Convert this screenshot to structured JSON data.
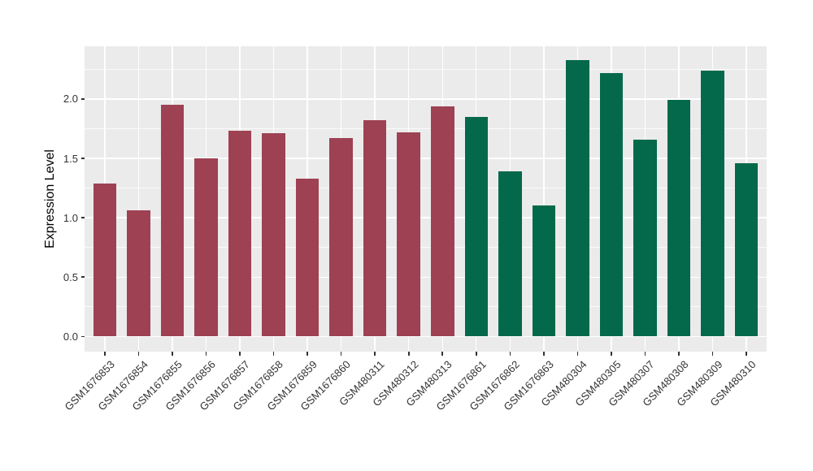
{
  "figure": {
    "title": "",
    "ylabel": "Expression Level",
    "panel_background": "#EBEBEB",
    "grid_color": "#FFFFFF",
    "axis_text_color": "#333333"
  },
  "chart_data": {
    "type": "bar",
    "title": "",
    "xlabel": "",
    "ylabel": "Expression Level",
    "grid": true,
    "legend": "none",
    "ylim": [
      0,
      2.44
    ],
    "ytick_values": [
      0.0,
      0.5,
      1.0,
      1.5,
      2.0
    ],
    "ytick_labels": [
      "0.0",
      "0.5",
      "1.0",
      "1.5",
      "2.0"
    ],
    "yminor_values": [
      0.25,
      0.75,
      1.25,
      1.75,
      2.25
    ],
    "x_label_angle_deg": 45,
    "categories": [
      "GSM1676853",
      "GSM1676854",
      "GSM1676855",
      "GSM1676856",
      "GSM1676857",
      "GSM1676858",
      "GSM1676859",
      "GSM1676860",
      "GSM480311",
      "GSM480312",
      "GSM480313",
      "GSM1676861",
      "GSM1676862",
      "GSM1676863",
      "GSM480304",
      "GSM480305",
      "GSM480307",
      "GSM480308",
      "GSM480309",
      "GSM480310"
    ],
    "values": [
      1.29,
      1.06,
      1.95,
      1.5,
      1.73,
      1.71,
      1.33,
      1.67,
      1.82,
      1.72,
      1.94,
      1.85,
      1.39,
      1.1,
      2.33,
      2.22,
      1.66,
      1.99,
      2.24,
      1.46
    ],
    "groups": [
      "red",
      "red",
      "red",
      "red",
      "red",
      "red",
      "red",
      "red",
      "red",
      "red",
      "red",
      "green",
      "green",
      "green",
      "green",
      "green",
      "green",
      "green",
      "green",
      "green"
    ],
    "group_colors": {
      "red": "#9E4153",
      "green": "#04694A"
    }
  }
}
